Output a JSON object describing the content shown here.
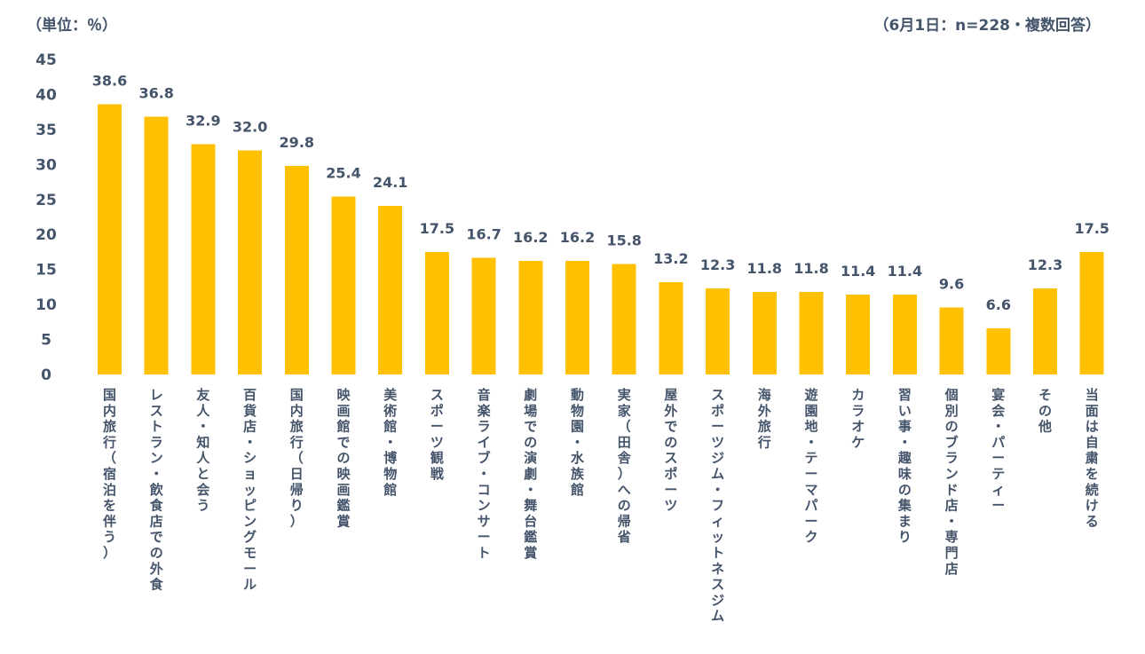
{
  "header": {
    "unit_note": "（単位：％）",
    "sample_note": "（6月1日：n=228・複数回答）"
  },
  "chart_data": {
    "type": "bar",
    "categories": [
      "国内旅行（宿泊を伴う）",
      "レストラン・飲食店での外食",
      "友人・知人と会う",
      "百貨店・ショッピングモール",
      "国内旅行（日帰り）",
      "映画館での映画鑑賞",
      "美術館・博物館",
      "スポーツ観戦",
      "音楽ライブ・コンサート",
      "劇場での演劇・舞台鑑賞",
      "動物園・水族館",
      "実家（田舎）への帰省",
      "屋外でのスポーツ",
      "スポーツジム・フィットネスジム",
      "海外旅行",
      "遊園地・テーマパーク",
      "カラオケ",
      "習い事・趣味の集まり",
      "個別のブランド店・専門店",
      "宴会・パーティー",
      "その他",
      "当面は自粛を続ける"
    ],
    "values": [
      38.6,
      36.8,
      32.9,
      32.0,
      29.8,
      25.4,
      24.1,
      17.5,
      16.7,
      16.2,
      16.2,
      15.8,
      13.2,
      12.3,
      11.8,
      11.8,
      11.4,
      11.4,
      9.6,
      6.6,
      12.3,
      17.5
    ],
    "value_labels": [
      "38.6",
      "36.8",
      "32.9",
      "32.0",
      "29.8",
      "25.4",
      "24.1",
      "17.5",
      "16.7",
      "16.2",
      "16.2",
      "15.8",
      "13.2",
      "12.3",
      "11.8",
      "11.8",
      "11.4",
      "11.4",
      "9.6",
      "6.6",
      "12.3",
      "17.5"
    ],
    "y_ticks": [
      "0",
      "5",
      "10",
      "15",
      "20",
      "25",
      "30",
      "35",
      "40",
      "45"
    ],
    "ylim": [
      0,
      45
    ],
    "grid": false,
    "legend": "none",
    "bar_color": "#ffc000",
    "text_color": "#44546a"
  }
}
